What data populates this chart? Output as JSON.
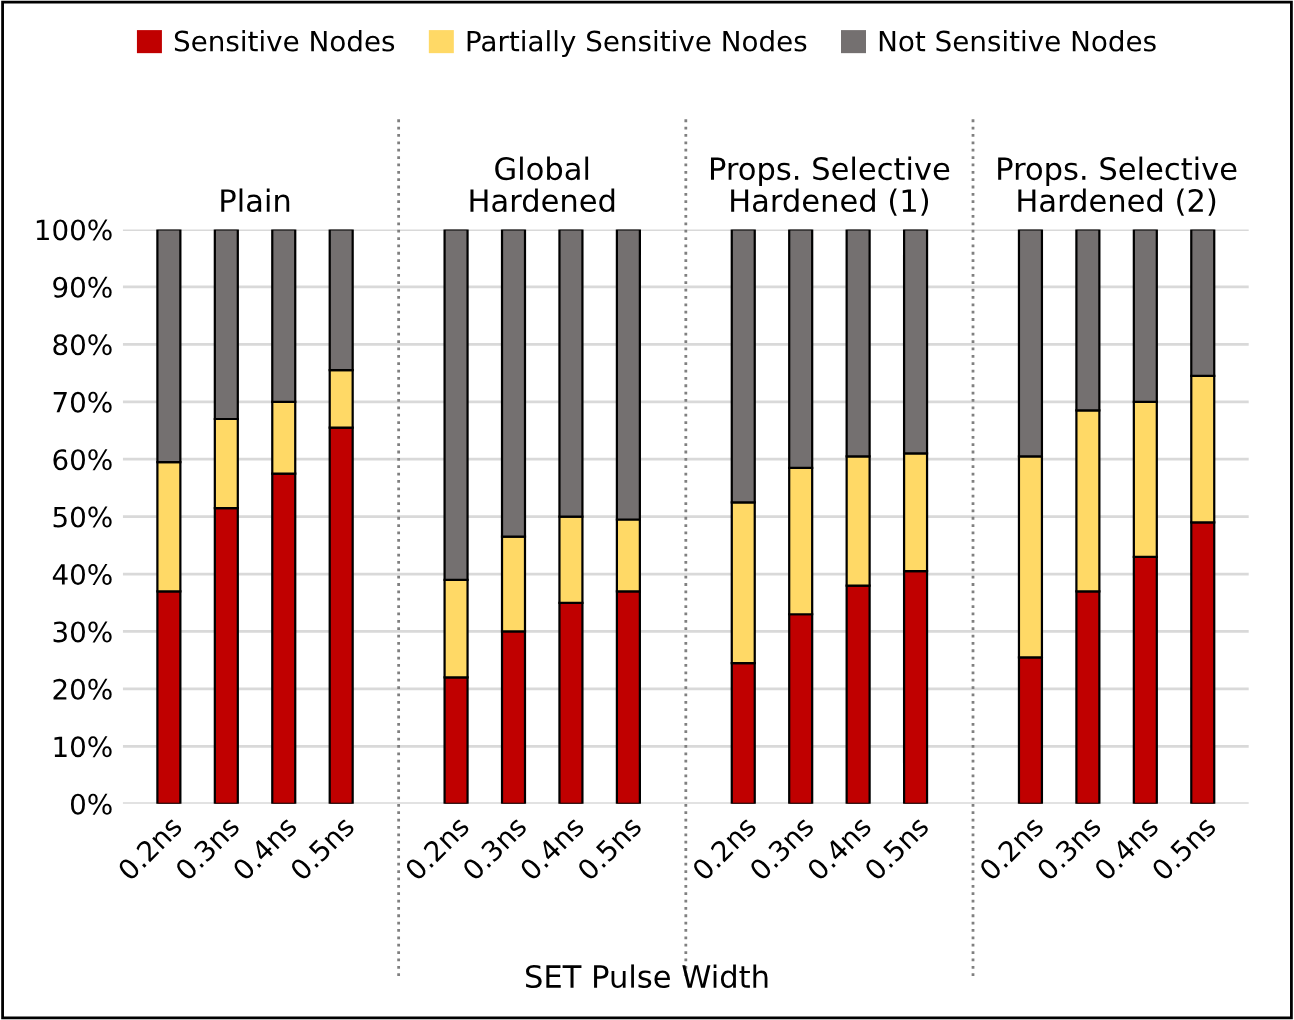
{
  "chart_data": {
    "type": "bar",
    "stacked": true,
    "categories": [
      "0.2ns",
      "0.3ns",
      "0.4ns",
      "0.5ns",
      "0.2ns",
      "0.3ns",
      "0.4ns",
      "0.5ns",
      "0.2ns",
      "0.3ns",
      "0.4ns",
      "0.5ns",
      "0.2ns",
      "0.3ns",
      "0.4ns",
      "0.5ns"
    ],
    "series": [
      {
        "name": "Sensitive Nodes",
        "color": "#c00000",
        "values": [
          37,
          51.5,
          57.5,
          65.5,
          22,
          30,
          35,
          37,
          24.5,
          33,
          38,
          40.5,
          25.5,
          37,
          43,
          49
        ]
      },
      {
        "name": "Partially Sensitive Nodes",
        "color": "#ffd966",
        "values": [
          22.5,
          15.5,
          12.5,
          10,
          17,
          16.5,
          15,
          12.5,
          28,
          25.5,
          22.5,
          20.5,
          35,
          31.5,
          27,
          25.5
        ]
      },
      {
        "name": "Not Sensitive Nodes",
        "color": "#747070",
        "values": [
          40.5,
          33,
          30,
          24.5,
          61,
          53.5,
          50,
          50.5,
          47.5,
          41.5,
          39.5,
          39,
          39.5,
          31.5,
          30,
          25.5
        ]
      }
    ],
    "annotations": [
      "Plain",
      "Global\nHardened",
      "Props. Selective\nHardened (1)",
      "Props. Selective\nHardened (2)"
    ],
    "ylim": [
      0,
      100
    ],
    "yticks": [
      {
        "value": 0,
        "label": "0%"
      },
      {
        "value": 10,
        "label": "10%"
      },
      {
        "value": 20,
        "label": "20%"
      },
      {
        "value": 30,
        "label": "30%"
      },
      {
        "value": 40,
        "label": "40%"
      },
      {
        "value": 50,
        "label": "50%"
      },
      {
        "value": 60,
        "label": "60%"
      },
      {
        "value": 70,
        "label": "70%"
      },
      {
        "value": 80,
        "label": "80%"
      },
      {
        "value": 90,
        "label": "90%"
      },
      {
        "value": 100,
        "label": "100%"
      }
    ],
    "grid": "y",
    "legend": "top",
    "xlabel": "SET Pulse Width"
  }
}
